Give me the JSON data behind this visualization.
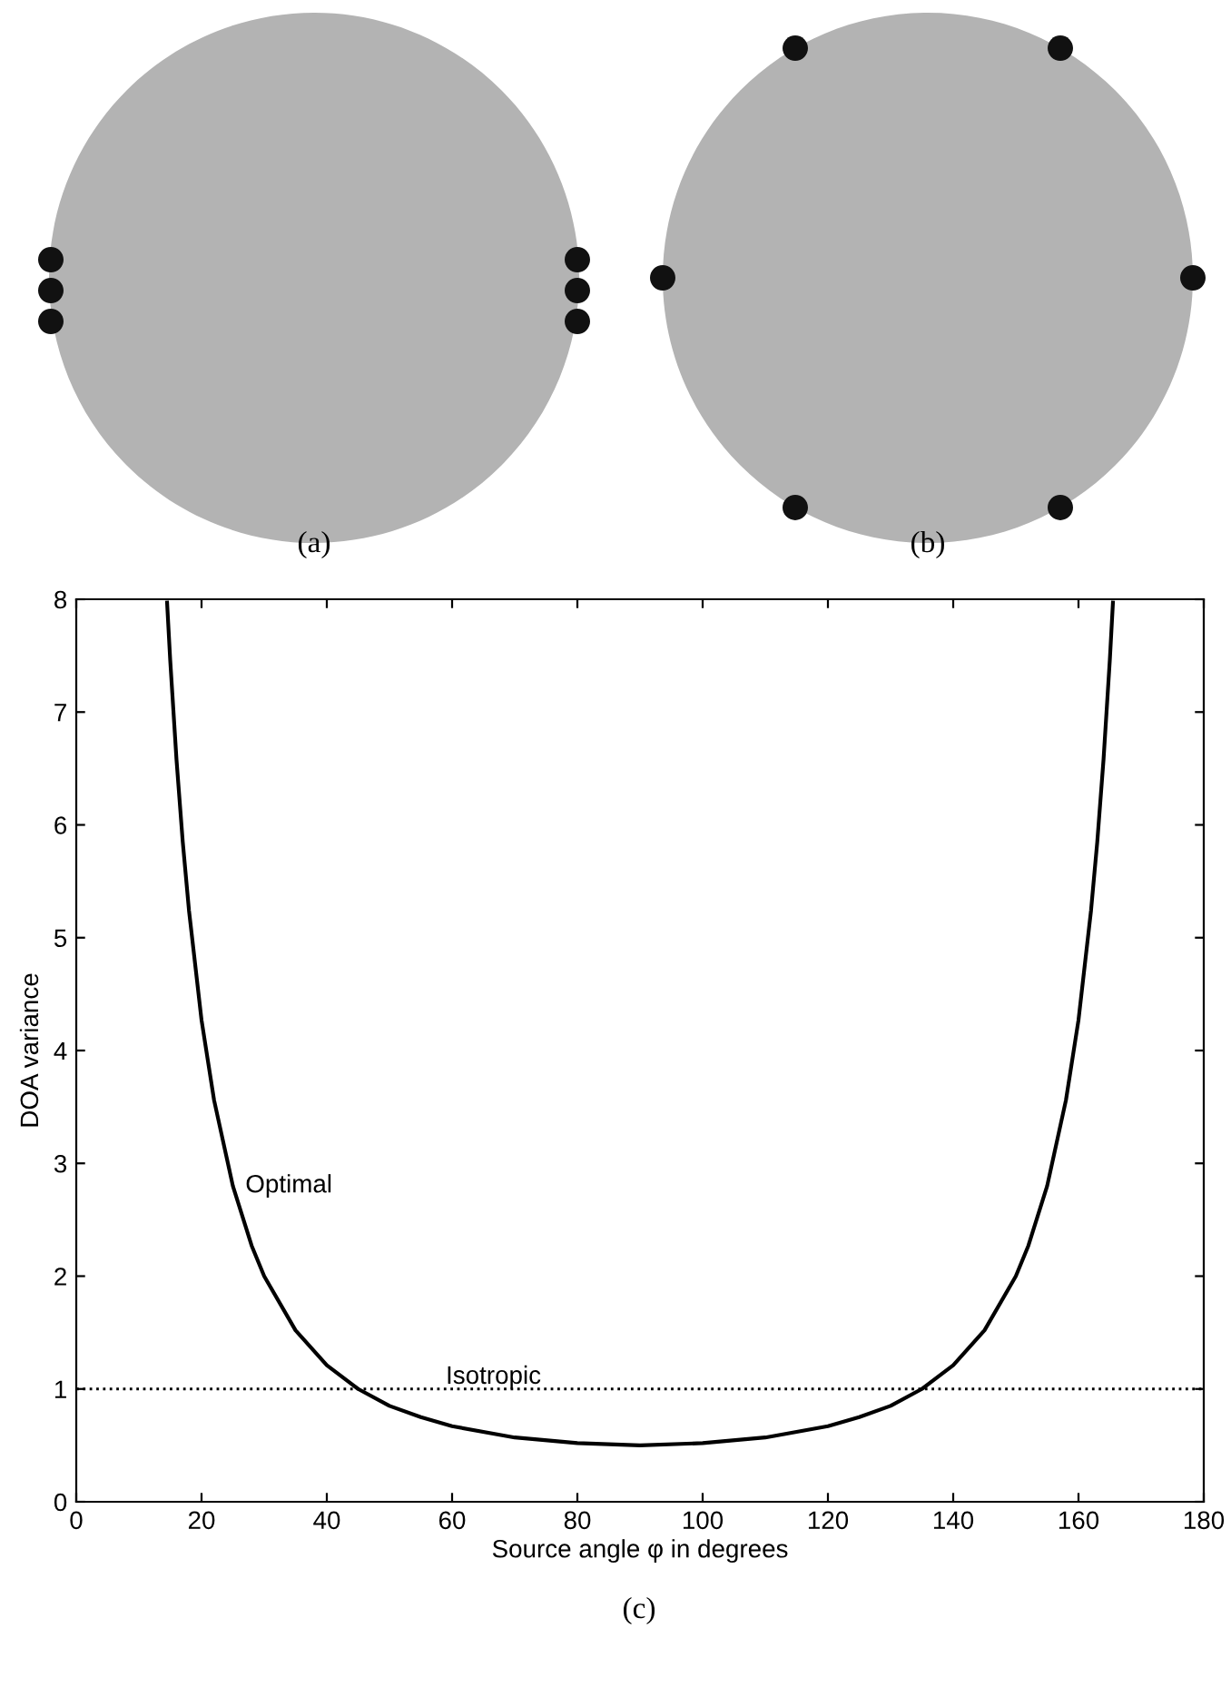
{
  "chart_data": {
    "type": "line",
    "xlabel": "Source angle φ in degrees",
    "ylabel": "DOA variance",
    "series": [
      {
        "name": "Optimal",
        "color": "#000000",
        "x": [
          14.5,
          15,
          16,
          17,
          18,
          20,
          22,
          25,
          28,
          30,
          35,
          40,
          45,
          50,
          55,
          60,
          70,
          80,
          90,
          100,
          110,
          120,
          125,
          130,
          135,
          140,
          145,
          150,
          152,
          155,
          158,
          160,
          162,
          163,
          164,
          165,
          165.5
        ],
        "values": [
          7.97,
          7.46,
          6.58,
          5.85,
          5.24,
          4.27,
          3.56,
          2.8,
          2.27,
          2.0,
          1.52,
          1.21,
          1.0,
          0.85,
          0.75,
          0.67,
          0.57,
          0.52,
          0.5,
          0.52,
          0.57,
          0.67,
          0.75,
          0.85,
          1.0,
          1.21,
          1.52,
          2.0,
          2.27,
          2.8,
          3.56,
          4.27,
          5.24,
          5.85,
          6.58,
          7.46,
          7.97
        ]
      }
    ],
    "ref_lines": [
      {
        "axis": "y",
        "value": 1,
        "label": "Isotropic",
        "color": "#000000",
        "line_style": "dotted"
      }
    ],
    "xlim": [
      0,
      180
    ],
    "ylim": [
      0,
      8
    ],
    "xticks": [
      0,
      20,
      40,
      60,
      80,
      100,
      120,
      140,
      160,
      180
    ],
    "yticks": [
      0,
      1,
      2,
      3,
      4,
      5,
      6,
      7,
      8
    ],
    "grid": false,
    "legend": false,
    "marker": "none",
    "line_style": "solid",
    "annotations": [
      "(a)",
      "(b)",
      "(c)"
    ]
  }
}
